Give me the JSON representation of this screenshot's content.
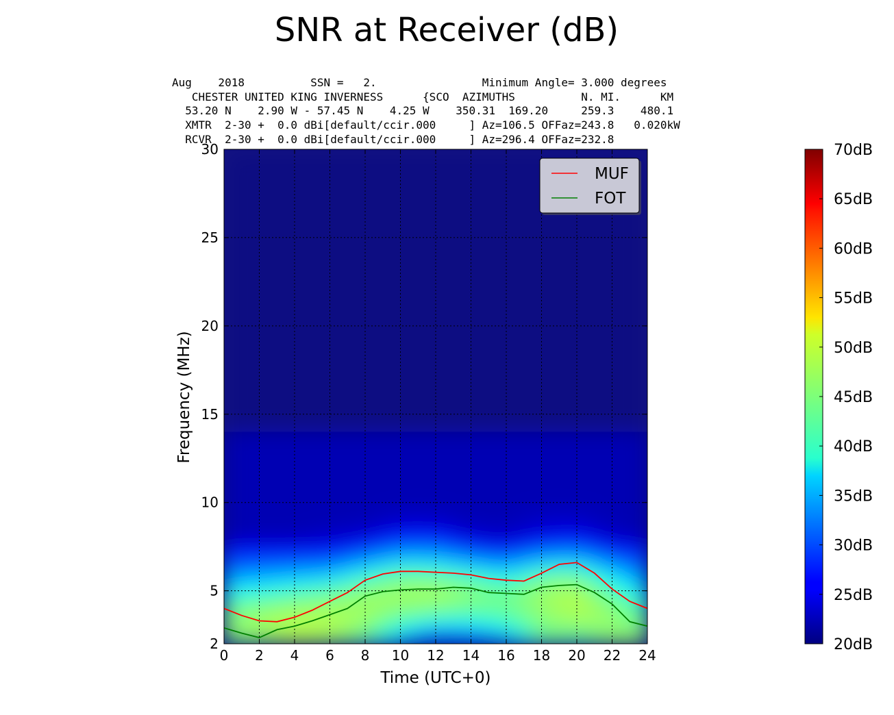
{
  "chart_data": {
    "type": "heatmap",
    "title": "SNR at Receiver (dB)",
    "info_lines": [
      "Aug    2018          SSN =   2.                Minimum Angle= 3.000 degrees",
      "   CHESTER UNITED KING INVERNESS      {SCO  AZIMUTHS          N. MI.      KM",
      "  53.20 N    2.90 W - 57.45 N    4.25 W    350.31  169.20     259.3    480.1",
      "  XMTR  2-30 +  0.0 dBi[default/ccir.000     ] Az=106.5 OFFaz=243.8   0.020kW",
      "  RCVR  2-30 +  0.0 dBi[default/ccir.000     ] Az=296.4 OFFaz=232.8"
    ],
    "xlabel": "Time (UTC+0)",
    "ylabel": "Frequency (MHz)",
    "xlim": [
      0,
      24
    ],
    "ylim": [
      2,
      30
    ],
    "xticks": [
      "0",
      "2",
      "4",
      "6",
      "8",
      "10",
      "12",
      "14",
      "16",
      "18",
      "20",
      "22",
      "24"
    ],
    "yticks": [
      "2",
      "5",
      "10",
      "15",
      "20",
      "25",
      "30"
    ],
    "grid": true,
    "legend_position": "top-right",
    "series": [
      {
        "name": "MUF",
        "color": "#ff0000",
        "x": [
          0,
          1,
          2,
          3,
          4,
          5,
          6,
          7,
          8,
          9,
          10,
          11,
          12,
          13,
          14,
          15,
          16,
          17,
          18,
          19,
          20,
          21,
          22,
          23,
          24
        ],
        "values": [
          4.0,
          3.6,
          3.3,
          3.25,
          3.5,
          3.9,
          4.4,
          4.9,
          5.6,
          5.95,
          6.1,
          6.1,
          6.05,
          6.0,
          5.9,
          5.7,
          5.6,
          5.55,
          6.0,
          6.5,
          6.6,
          6.0,
          5.1,
          4.4,
          4.0
        ]
      },
      {
        "name": "FOT",
        "color": "#007f00",
        "x": [
          0,
          1,
          2,
          3,
          4,
          5,
          6,
          7,
          8,
          9,
          10,
          11,
          12,
          13,
          14,
          15,
          16,
          17,
          18,
          19,
          20,
          21,
          22,
          23,
          24
        ],
        "values": [
          2.9,
          2.6,
          2.35,
          2.8,
          3.0,
          3.3,
          3.65,
          4.0,
          4.7,
          4.95,
          5.05,
          5.1,
          5.1,
          5.2,
          5.15,
          4.9,
          4.85,
          4.8,
          5.2,
          5.3,
          5.35,
          4.9,
          4.25,
          3.25,
          3.0
        ]
      }
    ],
    "colorbar": {
      "range": [
        20,
        70
      ],
      "ticks": [
        "20dB",
        "25dB",
        "30dB",
        "35dB",
        "40dB",
        "45dB",
        "50dB",
        "55dB",
        "60dB",
        "65dB",
        "70dB"
      ],
      "colormap": "jet"
    },
    "snr_grid": {
      "x": [
        0,
        2,
        4,
        6,
        8,
        10,
        12,
        14,
        16,
        18,
        20,
        22,
        24
      ],
      "y": [
        2,
        3,
        4,
        5,
        6,
        7,
        8,
        9,
        10,
        30
      ],
      "z": [
        [
          44,
          45,
          48,
          46,
          42,
          33,
          20,
          24,
          29,
          44,
          41,
          46,
          48
        ],
        [
          46,
          47,
          48,
          48,
          46,
          40,
          37,
          37,
          40,
          45,
          46,
          46,
          44
        ],
        [
          44,
          46,
          47,
          47,
          47,
          46,
          45,
          44,
          44,
          46,
          48,
          46,
          42
        ],
        [
          38,
          39,
          41,
          43,
          46,
          47,
          48,
          46,
          44,
          47,
          48,
          42,
          36
        ],
        [
          31,
          32,
          33,
          34,
          39,
          43,
          42,
          40,
          37,
          42,
          43,
          36,
          30
        ],
        [
          26,
          26,
          26,
          26,
          29,
          33,
          33,
          29,
          27,
          31,
          32,
          27,
          26
        ],
        [
          20,
          20,
          20,
          21,
          22,
          25,
          25,
          22,
          21,
          23,
          24,
          21,
          20
        ],
        [
          20,
          20,
          20,
          20,
          20,
          21,
          21,
          20,
          20,
          21,
          21,
          20,
          20
        ],
        [
          20,
          20,
          20,
          20,
          20,
          20,
          20,
          20,
          20,
          20,
          20,
          20,
          20
        ],
        [
          20,
          20,
          20,
          20,
          20,
          20,
          20,
          20,
          20,
          20,
          20,
          20,
          20
        ]
      ]
    }
  }
}
